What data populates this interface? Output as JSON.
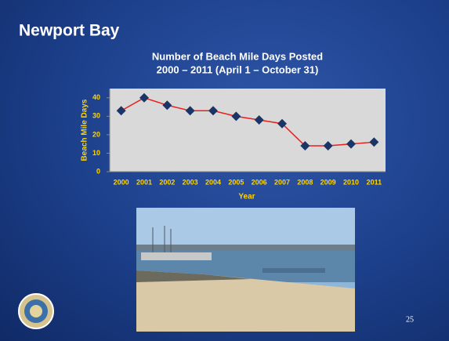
{
  "slide": {
    "title": "Newport Bay",
    "page_number": "25"
  },
  "chart_data": {
    "type": "line",
    "title": "Number of Beach Mile Days Posted",
    "subtitle": "2000 – 2011 (April 1 – October 31)",
    "x_label": "Year",
    "y_label": "Beach Mile Days",
    "categories": [
      "2000",
      "2001",
      "2002",
      "2003",
      "2004",
      "2005",
      "2006",
      "2007",
      "2008",
      "2009",
      "2010",
      "2011"
    ],
    "values": [
      33,
      40,
      36,
      33,
      33,
      30,
      28,
      26,
      14,
      14,
      15,
      16
    ],
    "color": "#e8201c",
    "marker_color": "#1b3566",
    "ylim": [
      0,
      45
    ],
    "yticks": [
      0,
      10,
      20,
      30,
      40
    ],
    "grid": false
  }
}
